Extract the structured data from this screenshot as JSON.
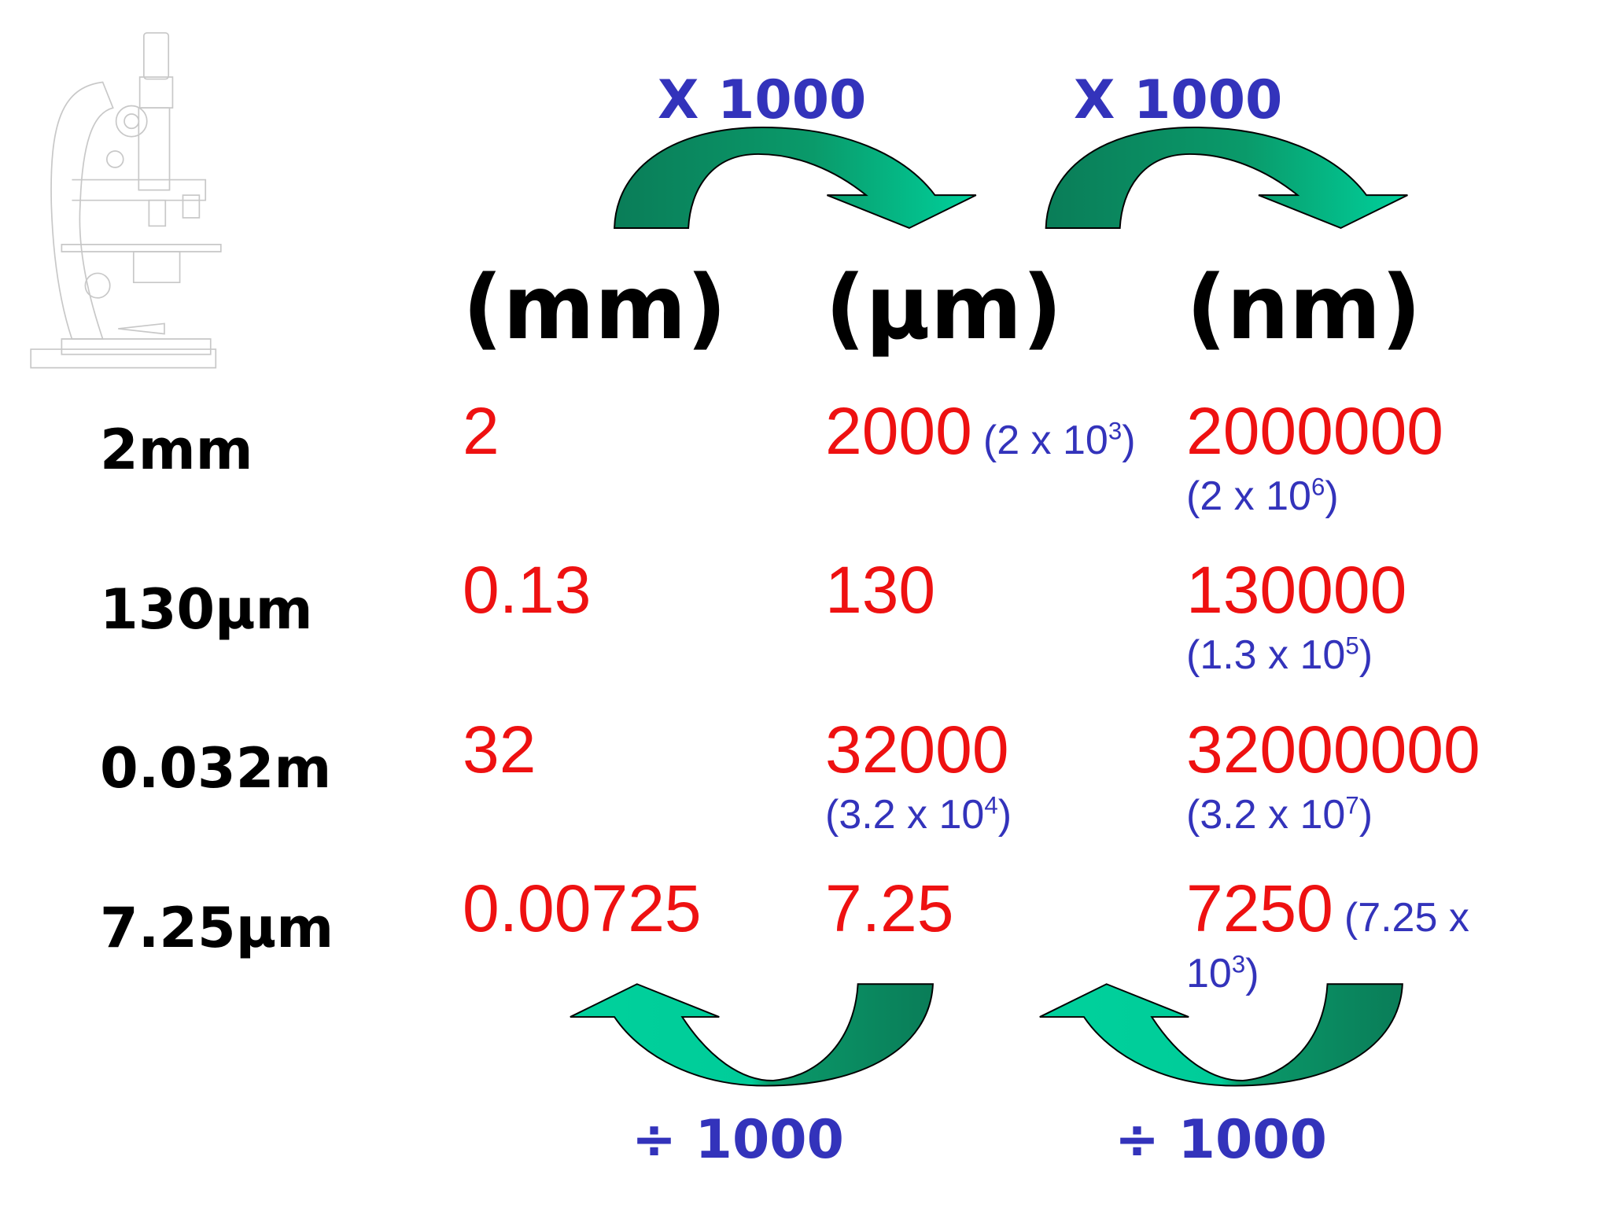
{
  "operations": {
    "top": [
      "X 1000",
      "X 1000"
    ],
    "bottom": [
      "÷ 1000",
      "÷ 1000"
    ]
  },
  "headers": [
    "(mm)",
    "(µm)",
    "(nm)"
  ],
  "rows": [
    {
      "label": "2mm",
      "cells": [
        {
          "value": "2"
        },
        {
          "value": "2000",
          "sci": {
            "base": "(2 x 10",
            "exp": "3",
            "end": ")"
          }
        },
        {
          "value": "2000000",
          "sci": {
            "base": "(2 x 10",
            "exp": "6",
            "end": ")"
          }
        }
      ]
    },
    {
      "label": "130µm",
      "cells": [
        {
          "value": "0.13"
        },
        {
          "value": "130"
        },
        {
          "value": "130000",
          "sci": {
            "base": "(1.3 x 10",
            "exp": "5",
            "end": ")"
          }
        }
      ]
    },
    {
      "label": "0.032m",
      "cells": [
        {
          "value": "32"
        },
        {
          "value": "32000",
          "sci": {
            "base": "(3.2 x 10",
            "exp": "4",
            "end": ")"
          }
        },
        {
          "value": "32000000",
          "sci": {
            "base": "(3.2 x 10",
            "exp": "7",
            "end": ")"
          }
        }
      ]
    },
    {
      "label": "7.25µm",
      "cells": [
        {
          "value": "0.00725"
        },
        {
          "value": "7.25"
        },
        {
          "value": "7250",
          "sci": {
            "base": "(7.25 x 10",
            "exp": "3",
            "end": ")"
          }
        }
      ]
    }
  ]
}
